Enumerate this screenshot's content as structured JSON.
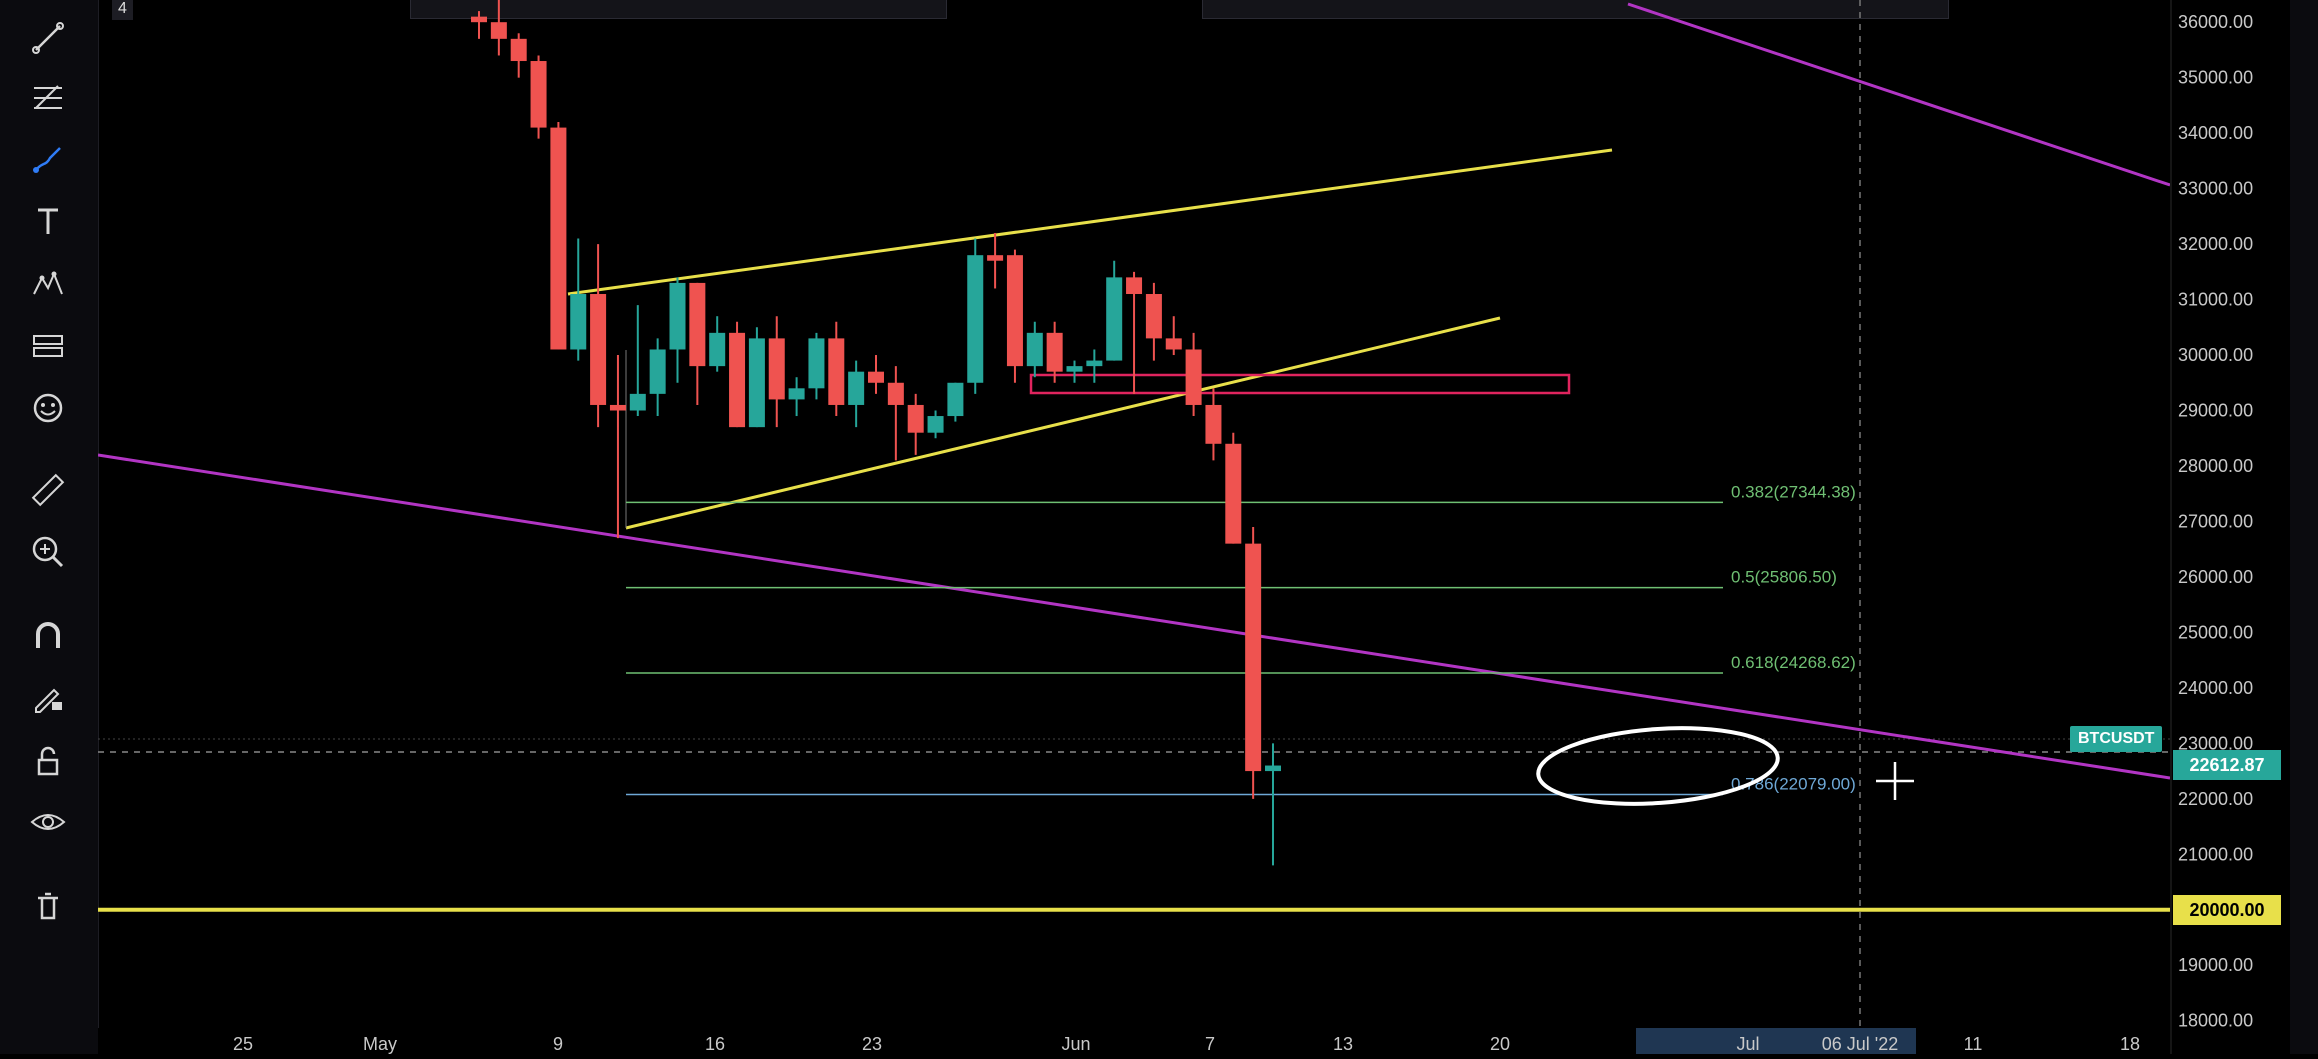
{
  "top": {
    "interval_badge": "4"
  },
  "toolbar": {
    "tools": [
      {
        "id": "trend-line",
        "icon": "trend-line-icon"
      },
      {
        "id": "fib",
        "icon": "fib-retracement-icon"
      },
      {
        "id": "brush",
        "icon": "brush-icon"
      },
      {
        "id": "text",
        "icon": "text-icon"
      },
      {
        "id": "patterns",
        "icon": "pattern-icon"
      },
      {
        "id": "prediction",
        "icon": "forecast-icon"
      },
      {
        "id": "emoji",
        "icon": "emoji-icon"
      },
      {
        "id": "measure",
        "icon": "ruler-icon"
      },
      {
        "id": "zoom",
        "icon": "zoom-in-icon"
      },
      {
        "id": "magnet",
        "icon": "magnet-icon"
      },
      {
        "id": "lock-draw",
        "icon": "pencil-lock-icon"
      },
      {
        "id": "lock",
        "icon": "lock-icon"
      },
      {
        "id": "hide",
        "icon": "eye-icon"
      },
      {
        "id": "delete",
        "icon": "trash-icon"
      }
    ]
  },
  "colors": {
    "up": "#26a69a",
    "down": "#ef5350",
    "yellow": "#e8e04a",
    "purple": "#b235c4",
    "fib_green": "#6fbf73",
    "fib_blue": "#6ea8d6",
    "pink": "#e0245e"
  },
  "price_axis": {
    "ticks": [
      "36000.00",
      "35000.00",
      "34000.00",
      "33000.00",
      "32000.00",
      "31000.00",
      "30000.00",
      "29000.00",
      "28000.00",
      "27000.00",
      "26000.00",
      "25000.00",
      "24000.00",
      "23000.00",
      "22000.00",
      "21000.00",
      "20000.00",
      "19000.00",
      "18000.00"
    ],
    "ylim": [
      17400,
      36400
    ],
    "current_price": "22612.87",
    "level_20000": "20000.00"
  },
  "symbol": "BTCUSDT",
  "date_axis": {
    "labels": [
      "25",
      "May",
      "9",
      "16",
      "23",
      "Jun",
      "7",
      "13",
      "20",
      "Jul",
      "06 Jul '22",
      "11",
      "18"
    ]
  },
  "fib_levels": [
    {
      "label": "0.382(27344.38)",
      "price": 27344.38,
      "color": "#6fbf73"
    },
    {
      "label": "0.5(25806.50)",
      "price": 25806.5,
      "color": "#6fbf73"
    },
    {
      "label": "0.618(24268.62)",
      "price": 24268.62,
      "color": "#6fbf73"
    },
    {
      "label": "0.786(22079.00)",
      "price": 22079.0,
      "color": "#6ea8d6"
    }
  ],
  "chart_data": {
    "type": "candlestick",
    "series": [
      {
        "d": "May-05",
        "o": 36100,
        "h": 36200,
        "l": 35700,
        "c": 36000
      },
      {
        "d": "May-06",
        "o": 36000,
        "h": 36400,
        "l": 35400,
        "c": 35700
      },
      {
        "d": "May-07",
        "o": 35700,
        "h": 35800,
        "l": 35000,
        "c": 35300
      },
      {
        "d": "May-08",
        "o": 35300,
        "h": 35400,
        "l": 33900,
        "c": 34100
      },
      {
        "d": "May-09",
        "o": 34100,
        "h": 34200,
        "l": 30100,
        "c": 30100
      },
      {
        "d": "May-10",
        "o": 30100,
        "h": 32100,
        "l": 29900,
        "c": 31100
      },
      {
        "d": "May-11",
        "o": 31100,
        "h": 32000,
        "l": 28700,
        "c": 29100
      },
      {
        "d": "May-12",
        "o": 29100,
        "h": 30000,
        "l": 26700,
        "c": 29000
      },
      {
        "d": "May-13",
        "o": 29000,
        "h": 30900,
        "l": 28900,
        "c": 29300
      },
      {
        "d": "May-14",
        "o": 29300,
        "h": 30300,
        "l": 28900,
        "c": 30100
      },
      {
        "d": "May-15",
        "o": 30100,
        "h": 31400,
        "l": 29500,
        "c": 31300
      },
      {
        "d": "May-16",
        "o": 31300,
        "h": 31300,
        "l": 29100,
        "c": 29800
      },
      {
        "d": "May-17",
        "o": 29800,
        "h": 30700,
        "l": 29700,
        "c": 30400
      },
      {
        "d": "May-18",
        "o": 30400,
        "h": 30600,
        "l": 28700,
        "c": 28700
      },
      {
        "d": "May-19",
        "o": 28700,
        "h": 30500,
        "l": 28700,
        "c": 30300
      },
      {
        "d": "May-20",
        "o": 30300,
        "h": 30700,
        "l": 28700,
        "c": 29200
      },
      {
        "d": "May-21",
        "o": 29200,
        "h": 29600,
        "l": 28900,
        "c": 29400
      },
      {
        "d": "May-22",
        "o": 29400,
        "h": 30400,
        "l": 29200,
        "c": 30300
      },
      {
        "d": "May-23",
        "o": 30300,
        "h": 30600,
        "l": 28900,
        "c": 29100
      },
      {
        "d": "May-24",
        "o": 29100,
        "h": 29900,
        "l": 28700,
        "c": 29700
      },
      {
        "d": "May-25",
        "o": 29700,
        "h": 30000,
        "l": 29300,
        "c": 29500
      },
      {
        "d": "May-26",
        "o": 29500,
        "h": 29800,
        "l": 28100,
        "c": 29100
      },
      {
        "d": "May-27",
        "o": 29100,
        "h": 29300,
        "l": 28200,
        "c": 28600
      },
      {
        "d": "May-28",
        "o": 28600,
        "h": 29000,
        "l": 28500,
        "c": 28900
      },
      {
        "d": "May-29",
        "o": 28900,
        "h": 29500,
        "l": 28800,
        "c": 29500
      },
      {
        "d": "May-30",
        "o": 29500,
        "h": 32100,
        "l": 29300,
        "c": 31800
      },
      {
        "d": "May-31",
        "o": 31800,
        "h": 32200,
        "l": 31200,
        "c": 31700
      },
      {
        "d": "Jun-01",
        "o": 31800,
        "h": 31900,
        "l": 29500,
        "c": 29800
      },
      {
        "d": "Jun-02",
        "o": 29800,
        "h": 30600,
        "l": 29600,
        "c": 30400
      },
      {
        "d": "Jun-03",
        "o": 30400,
        "h": 30600,
        "l": 29500,
        "c": 29700
      },
      {
        "d": "Jun-04",
        "o": 29700,
        "h": 29900,
        "l": 29500,
        "c": 29800
      },
      {
        "d": "Jun-05",
        "o": 29800,
        "h": 30100,
        "l": 29500,
        "c": 29900
      },
      {
        "d": "Jun-06",
        "o": 29900,
        "h": 31700,
        "l": 29900,
        "c": 31400
      },
      {
        "d": "Jun-07",
        "o": 31400,
        "h": 31500,
        "l": 29300,
        "c": 31100
      },
      {
        "d": "Jun-08",
        "o": 31100,
        "h": 31300,
        "l": 29900,
        "c": 30300
      },
      {
        "d": "Jun-09",
        "o": 30300,
        "h": 30700,
        "l": 30000,
        "c": 30100
      },
      {
        "d": "Jun-10",
        "o": 30100,
        "h": 30400,
        "l": 28900,
        "c": 29100
      },
      {
        "d": "Jun-11",
        "o": 29100,
        "h": 29400,
        "l": 28100,
        "c": 28400
      },
      {
        "d": "Jun-12",
        "o": 28400,
        "h": 28600,
        "l": 26600,
        "c": 26600
      },
      {
        "d": "Jun-13",
        "o": 26600,
        "h": 26900,
        "l": 22000,
        "c": 22500
      },
      {
        "d": "Jun-14",
        "o": 22500,
        "h": 23000,
        "l": 20800,
        "c": 22600
      }
    ]
  }
}
